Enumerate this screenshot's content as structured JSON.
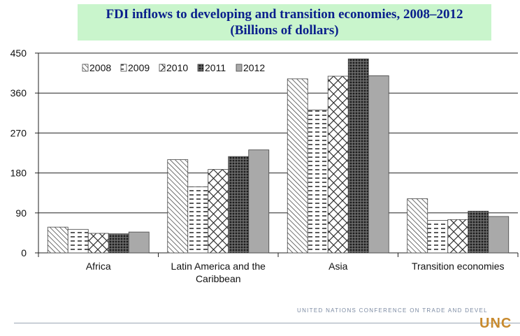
{
  "title_line1": "FDI inflows to developing and transition economies, 2008–2012",
  "title_line2": "(Billions of dollars)",
  "footer": {
    "org_text": "UNITED NATIONS CONFERENCE ON TRADE AND DEVEL",
    "logo_text": "UNC"
  },
  "chart_data": {
    "type": "bar",
    "categories": [
      [
        "Africa"
      ],
      [
        "Latin America and the",
        "Caribbean"
      ],
      [
        "Asia"
      ],
      [
        "Transition economies"
      ]
    ],
    "series": [
      {
        "name": "2008",
        "values": [
          58,
          210,
          392,
          122
        ],
        "pattern": "diag"
      },
      {
        "name": "2009",
        "values": [
          53,
          149,
          322,
          73
        ],
        "pattern": "dash"
      },
      {
        "name": "2010",
        "values": [
          44,
          188,
          398,
          75
        ],
        "pattern": "cross"
      },
      {
        "name": "2011",
        "values": [
          43,
          217,
          437,
          94
        ],
        "pattern": "dark"
      },
      {
        "name": "2012",
        "values": [
          47,
          232,
          399,
          82
        ],
        "pattern": "gray"
      }
    ],
    "ylim": [
      0,
      450
    ],
    "yticks": [
      0,
      90,
      180,
      270,
      360,
      450
    ],
    "grid": true,
    "legend_position": "top-left"
  }
}
